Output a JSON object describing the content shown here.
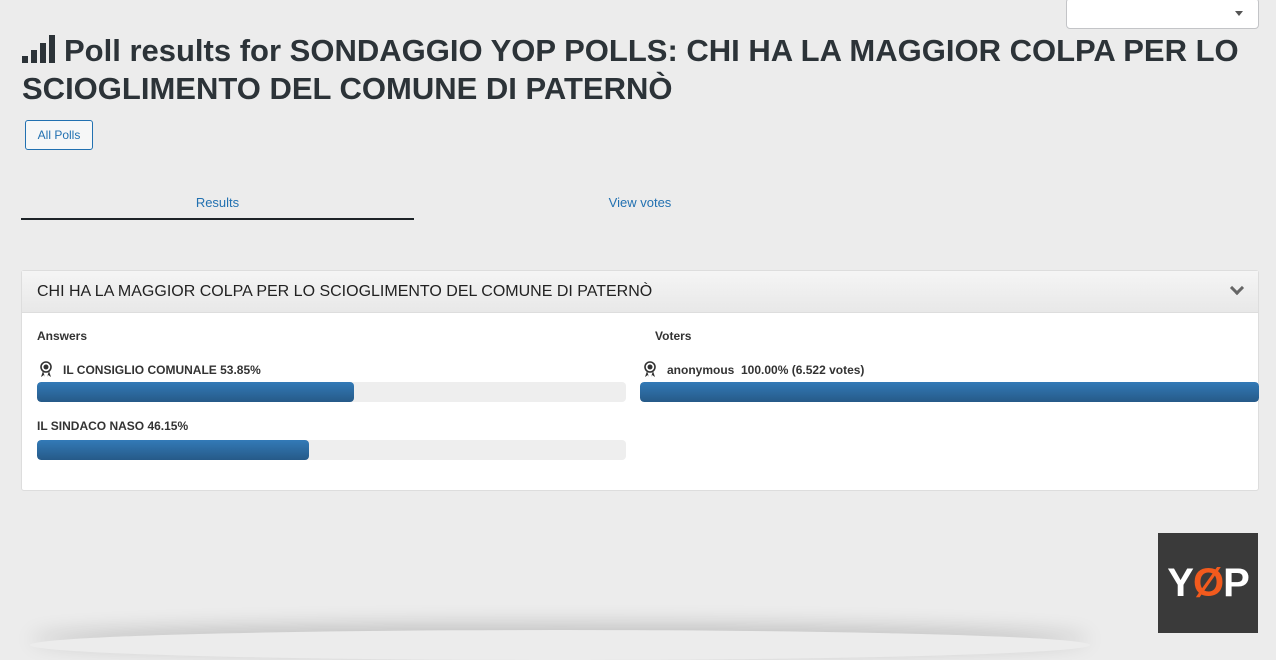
{
  "header": {
    "title": "Poll results for SONDAGGIO YOP POLLS: CHI HA LA MAGGIOR COLPA PER LO SCIOGLIMENTO DEL COMUNE DI PATERNÒ",
    "all_polls": "All Polls",
    "dropdown_value": ""
  },
  "tabs": [
    {
      "label": "Results",
      "active": true
    },
    {
      "label": "View votes",
      "active": false
    }
  ],
  "question": {
    "title": "CHI HA LA MAGGIOR COLPA PER LO SCIOGLIMENTO DEL COMUNE DI PATERNÒ",
    "answers_label": "Answers",
    "voters_label": "Voters",
    "answers": [
      {
        "label": "IL CONSIGLIO COMUNALE 53.85%",
        "percent": 53.85,
        "winner": true
      },
      {
        "label": "IL SINDACO NASO 46.15%",
        "percent": 46.15,
        "winner": false
      }
    ],
    "voters": [
      {
        "label": "anonymous  100.00% (6.522 votes)",
        "percent": 100,
        "winner": true
      }
    ]
  },
  "logo": {
    "text": "YOP"
  },
  "colors": {
    "accent": "#2271b1",
    "bar": "#337ab7",
    "logo_check": "#f25a1d"
  }
}
